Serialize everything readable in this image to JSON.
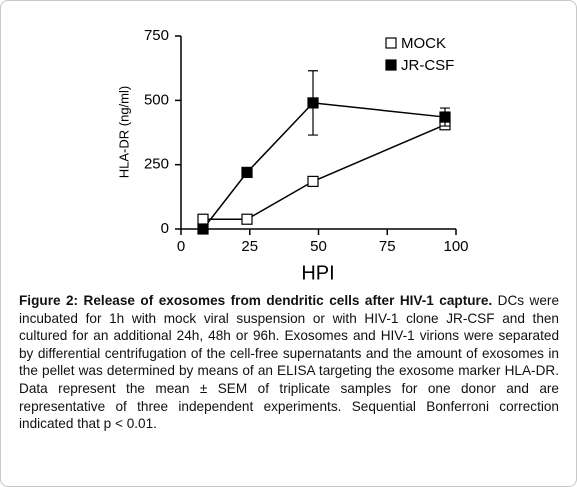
{
  "chart_data": {
    "type": "line",
    "xlabel": "HPI",
    "ylabel": "HLA-DR (ng/ml)",
    "x": [
      8,
      24,
      48,
      96
    ],
    "series": [
      {
        "name": "MOCK",
        "color": "#ffffff",
        "values": [
          38,
          38,
          185,
          405
        ]
      },
      {
        "name": "JR-CSF",
        "color": "#000000",
        "values": [
          0,
          220,
          490,
          435
        ],
        "errors": [
          null,
          null,
          125,
          35
        ]
      }
    ],
    "xlim": [
      0,
      100
    ],
    "xticks": [
      0,
      25,
      50,
      75,
      100
    ],
    "ylim": [
      0,
      750
    ],
    "yticks": [
      0,
      250,
      500,
      750
    ],
    "legend": "upper right"
  },
  "caption": {
    "title": "Figure 2: Release of exosomes from dendritic cells after HIV-1 capture.",
    "text": "DCs were incubated for 1h with mock viral suspension or with HIV-1 clone JR-CSF and then cultured for an additional 24h, 48h or 96h. Exosomes and HIV-1 virions were separated by differential centrifugation of the cell-free supernatants and the amount of exosomes in the pellet was determined by means of an ELISA targeting the exosome marker HLA-DR. Data represent the mean ± SEM of triplicate samples for one donor and are representative of three independent experiments. Sequential Bonferroni correction indicated that p < 0.01."
  }
}
